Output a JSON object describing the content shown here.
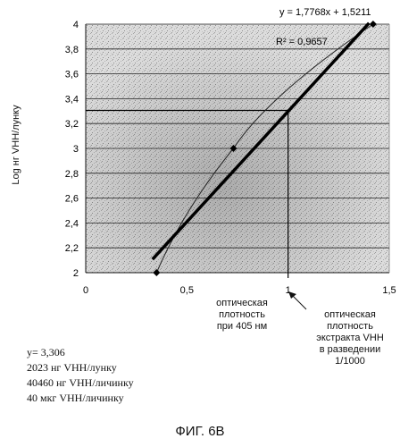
{
  "chart_data": {
    "type": "scatter",
    "ylabel": "Log нг VHH/лунку",
    "xlim": [
      0,
      1.5
    ],
    "ylim": [
      2,
      4
    ],
    "xticks": [
      "0",
      "0,5",
      "1",
      "1,5"
    ],
    "yticks": [
      "2",
      "2,2",
      "2,4",
      "2,6",
      "2,8",
      "3",
      "3,2",
      "3,4",
      "3,6",
      "3,8",
      "4"
    ],
    "grid": true,
    "points": [
      {
        "x": 0.35,
        "y": 2.0
      },
      {
        "x": 0.73,
        "y": 3.0
      },
      {
        "x": 1.42,
        "y": 4.0
      }
    ],
    "trendline": {
      "slope": 1.7768,
      "intercept": 1.5211,
      "x_range": [
        0.33,
        1.4
      ]
    },
    "equation": "y = 1,7768x + 1,5211",
    "r2": "R² = 0,9657",
    "marker_x": 1.0,
    "marker_y": 3.306,
    "annotations": [
      {
        "id": "od405",
        "lines": [
          "оптическая",
          "плотность",
          "при 405 нм"
        ]
      },
      {
        "id": "extract",
        "lines": [
          "оптическая",
          "плотность",
          "экстракта VHH",
          "в разведении",
          "1/1000"
        ]
      }
    ]
  },
  "results": [
    "y= 3,306",
    "2023   нг VHH/лунку",
    "40460  нг VHH/личинку",
    "40    мкг VHH/личинку"
  ],
  "figure_caption": "ФИГ. 6В"
}
